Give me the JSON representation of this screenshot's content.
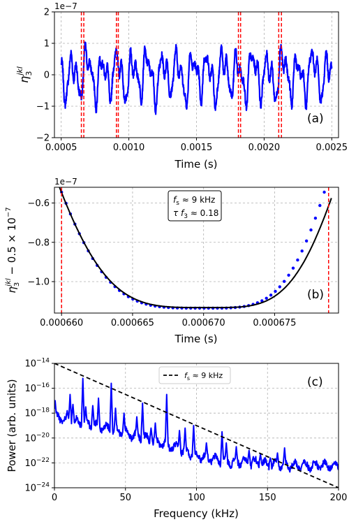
{
  "chart_data": [
    {
      "panel": "a",
      "type": "line",
      "ylabel_tex": "η3jkl",
      "ylabel_base": "η",
      "ylabel_sub": "3",
      "ylabel_sup": "jkl",
      "xlabel": "Time (s)",
      "panel_label": "(a)",
      "offset_text": "1e−7",
      "xlim": [
        0.00045,
        0.00255
      ],
      "ylim": [
        -2,
        2
      ],
      "xticks": [
        0.0005,
        0.001,
        0.0015,
        0.002,
        0.0025
      ],
      "xtick_labels": [
        "0.0005",
        "0.0010",
        "0.0015",
        "0.0020",
        "0.0025"
      ],
      "yticks": [
        -2,
        -1,
        0,
        1,
        2
      ],
      "ytick_labels": [
        "−2",
        "−1",
        "0",
        "1",
        "2"
      ],
      "grid": true,
      "series_color": "#0000ff",
      "marker_color": "#ff0000",
      "signal": {
        "x_start": 0.0005,
        "x_end": 0.0025,
        "base_frequency_hz": 9000,
        "amplitude": 1.0
      },
      "vlines": [
        0.000649,
        0.000667,
        0.000908,
        0.000922,
        0.00181,
        0.001826,
        0.002108,
        0.002128
      ]
    },
    {
      "panel": "b",
      "type": "line",
      "ylabel_main": "η",
      "ylabel_sub": "3",
      "ylabel_sup": "jkl",
      "ylabel_rest": " − 0.5 × 10",
      "ylabel_exp": "−7",
      "xlabel": "Time (s)",
      "panel_label": "(b)",
      "offset_text": "1e−7",
      "xlim": [
        0.0006595,
        0.0006795
      ],
      "ylim": [
        -1.16,
        -0.52
      ],
      "xticks": [
        0.00066,
        0.000665,
        0.00067,
        0.000675
      ],
      "xtick_labels": [
        "0.000660",
        "0.000665",
        "0.000670",
        "0.000675"
      ],
      "yticks": [
        -1.0,
        -0.8,
        -0.6
      ],
      "ytick_labels": [
        "−1.0",
        "−0.8",
        "−0.6"
      ],
      "grid": true,
      "annotation": {
        "line1_main": "f",
        "line1_sub": "s",
        "line1_rest": " ≈ 9 kHz",
        "line2_main": "τ f",
        "line2_sub": "3",
        "line2_rest": " ≈  0.18"
      },
      "fit_line": {
        "name": "fit",
        "color": "#000000",
        "x0": 0.0006598,
        "y0": -0.51,
        "x_min": 0.0006703,
        "y_min": -1.132,
        "x1": 0.000679,
        "y1": -0.575
      },
      "data_points": {
        "color": "#0000ff",
        "x_start": 0.00066,
        "x_end": 0.0006785,
        "count": 60,
        "y_start": -0.545,
        "y_min": -1.135,
        "x_min": 0.0006701,
        "y_end": -0.545
      },
      "vlines": [
        0.00066,
        0.0006788
      ]
    },
    {
      "panel": "c",
      "type": "line",
      "ylabel": "Power (arb. units)",
      "xlabel": "Frequency (kHz)",
      "panel_label": "(c)",
      "yscale": "log",
      "xlim": [
        0,
        200
      ],
      "ylim_exp": [
        -24,
        -14
      ],
      "xticks": [
        0,
        50,
        100,
        150,
        200
      ],
      "xtick_labels": [
        "0",
        "50",
        "100",
        "150",
        "200"
      ],
      "ytick_exps": [
        -24,
        -22,
        -20,
        -18,
        -16,
        -14
      ],
      "ytick_base": "10",
      "ytick_labels": [
        "−24",
        "−22",
        "−20",
        "−18",
        "−16",
        "−14"
      ],
      "grid": true,
      "legend": {
        "label_main": "f",
        "label_sub": "s",
        "label_rest": " ≈ 9 kHz",
        "position": "top-center"
      },
      "reference_line": {
        "color": "#000000",
        "style": "dashed",
        "x": [
          0,
          200
        ],
        "log10_y": [
          -14,
          -24
        ]
      },
      "spectrum": {
        "color": "#0000ff",
        "baseline_log10": [
          [
            0,
            -18.3
          ],
          [
            20,
            -18.8
          ],
          [
            40,
            -19.3
          ],
          [
            60,
            -19.9
          ],
          [
            80,
            -20.6
          ],
          [
            100,
            -21.4
          ],
          [
            120,
            -21.9
          ],
          [
            140,
            -22.0
          ],
          [
            160,
            -22.2
          ],
          [
            180,
            -22.2
          ],
          [
            200,
            -22.2
          ]
        ],
        "peaks": [
          [
            0.5,
            -17.0
          ],
          [
            9,
            -17.8
          ],
          [
            11,
            -16.5
          ],
          [
            13,
            -17.3
          ],
          [
            20,
            -15.2
          ],
          [
            22,
            -17.5
          ],
          [
            27,
            -17.4
          ],
          [
            31,
            -16.8
          ],
          [
            40,
            -15.6
          ],
          [
            43,
            -17.6
          ],
          [
            49,
            -18.0
          ],
          [
            58,
            -18.3
          ],
          [
            62,
            -17.2
          ],
          [
            68,
            -19.2
          ],
          [
            71,
            -18.8
          ],
          [
            79,
            -16.5
          ],
          [
            88,
            -19.4
          ],
          [
            92,
            -19.2
          ],
          [
            98,
            -19.0
          ],
          [
            107,
            -20.4
          ],
          [
            118,
            -19.5
          ],
          [
            121,
            -20.4
          ],
          [
            128,
            -20.7
          ],
          [
            133,
            -21.5
          ],
          [
            137,
            -21.0
          ],
          [
            140,
            -21.5
          ],
          [
            145,
            -21.3
          ],
          [
            152,
            -21.6
          ],
          [
            157,
            -21.2
          ],
          [
            162,
            -20.8
          ],
          [
            175,
            -22.0
          ],
          [
            190,
            -22.0
          ],
          [
            197,
            -22.0
          ]
        ]
      }
    }
  ]
}
